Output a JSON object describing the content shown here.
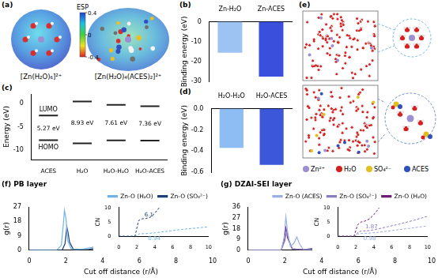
{
  "figure": {
    "a": {
      "panel": "(a)",
      "labels": [
        "[Zn(H₂O)₆]²⁺",
        "[Zn(H₂O)₄(ACES)₂]²⁺"
      ],
      "colorbar": {
        "title": "ESP",
        "range": [
          -0.4,
          0.4
        ],
        "ticks": [
          0.4,
          0,
          -0.4
        ]
      }
    },
    "e": {
      "panel": "(e)",
      "species": [
        "Zn²⁺",
        "H₂O",
        "SO₄²⁻",
        "ACES"
      ]
    }
  },
  "chart_data": [
    {
      "panel": "(b)",
      "type": "bar",
      "categories": [
        "Zn-H₂O",
        "Zn-ACES"
      ],
      "values": [
        -15.5,
        -27.5
      ],
      "colors": [
        "#9cc3f2",
        "#3a4fdc"
      ],
      "y_label": "Binding energy (eV)",
      "ylim": [
        -30,
        0
      ],
      "yticks": [
        -30,
        -20,
        -10,
        0
      ],
      "grid": false
    },
    {
      "panel": "(c)",
      "type": "energy_levels",
      "categories": [
        "ACES",
        "H₂O",
        "H₂O-H₂O",
        "H₂O-ACES"
      ],
      "series": [
        {
          "name": "LUMO",
          "values": [
            -2.6,
            0.4,
            -0.3,
            -0.6
          ]
        },
        {
          "name": "HOMO",
          "values": [
            -7.87,
            -8.53,
            -7.91,
            -7.96
          ]
        }
      ],
      "gap_labels": [
        "5.27 eV",
        "8.93 eV",
        "7.61 eV",
        "7.36 eV"
      ],
      "color": "#222222",
      "y_label": "Energy (eV)",
      "ylim": [
        -12,
        2
      ],
      "yticks": [
        -10,
        -5,
        0
      ],
      "grid": false
    },
    {
      "panel": "(d)",
      "type": "bar",
      "categories": [
        "H₂O-H₂O",
        "H₂O-ACES"
      ],
      "values": [
        -0.37,
        -0.53
      ],
      "colors": [
        "#8dbdf2",
        "#3d57da"
      ],
      "y_label": "Binding energy (eV)",
      "ylim": [
        -0.6,
        0
      ],
      "yticks": [
        -0.6,
        -0.4,
        -0.2,
        {
          "value": 0,
          "label": "0.0"
        }
      ],
      "grid": false
    },
    {
      "panel": "(f)",
      "type": "line",
      "title": "PB layer",
      "x_label": "Cut off distance (r/Å)",
      "y_label": "g(r)",
      "xlim": [
        0,
        10
      ],
      "xticks": [
        0,
        2,
        4,
        6,
        8,
        10
      ],
      "ylim": [
        0,
        27
      ],
      "yticks": [
        0,
        9,
        18,
        27
      ],
      "grid": false,
      "legend": "upper right",
      "series": [
        {
          "name": "Zn-O (H₂O)",
          "color": "#6fb3e8",
          "x": [
            0,
            1.5,
            1.75,
            1.85,
            1.92,
            2.0,
            2.1,
            2.3,
            2.6,
            3.0,
            3.4,
            3.7,
            4.0,
            4.3,
            4.6,
            5,
            6,
            7,
            8,
            9,
            10
          ],
          "values": [
            0,
            0,
            3,
            15,
            25,
            20,
            6,
            0.5,
            0.3,
            0.8,
            1.6,
            2.6,
            3.4,
            2.2,
            1.4,
            1.1,
            1,
            1,
            1,
            1,
            1
          ]
        },
        {
          "name": "Zn-O (SO₄²⁻)",
          "color": "#1d3f7a",
          "x": [
            0,
            1.8,
            1.95,
            2.05,
            2.1,
            2.2,
            2.4,
            2.8,
            3.2,
            3.5,
            3.8,
            4.1,
            4.5,
            5,
            6,
            7,
            8,
            9,
            10
          ],
          "values": [
            0,
            0,
            4,
            14.5,
            12,
            5,
            0.5,
            0.2,
            0.3,
            1.0,
            2.5,
            3.6,
            1.3,
            0.8,
            0.6,
            0.7,
            0.8,
            0.8,
            0.8
          ]
        }
      ],
      "inset": {
        "type": "line",
        "y_label": "CN",
        "xlim": [
          0,
          10
        ],
        "xticks": [
          0,
          2,
          4,
          6,
          8,
          10
        ],
        "ylim": [
          0,
          10
        ],
        "yticks": [
          0,
          5,
          10
        ],
        "grid": false,
        "line_style": "dashed",
        "series": [
          {
            "color": "#1d3f7a",
            "x": [
              0,
              1.8,
              2.2,
              2.6,
              3,
              3.5,
              4,
              4.5,
              5,
              5.5
            ],
            "values": [
              0,
              0,
              5.5,
              6.1,
              6.2,
              6.6,
              8,
              10,
              12.5,
              15
            ]
          },
          {
            "color": "#6fb3e8",
            "x": [
              0,
              1.9,
              2.3,
              3,
              4,
              5,
              6,
              7,
              8,
              9,
              10
            ],
            "values": [
              0,
              0,
              0.9,
              0.94,
              1.2,
              1.6,
              2.0,
              2.4,
              2.7,
              3.0,
              3.3
            ]
          }
        ],
        "annotations": [
          {
            "text": "6.1",
            "x": 2.6,
            "y": 6.1,
            "color": "#1d3f7a"
          },
          {
            "text": "0.94",
            "x": 3,
            "y": 0.94,
            "color": "#6fb3e8"
          }
        ]
      }
    },
    {
      "panel": "(g)",
      "type": "line",
      "title": "DZAI-SEI layer",
      "x_label": "Cut off distance (r/Å)",
      "y_label": "g(r)",
      "xlim": [
        0,
        10
      ],
      "xticks": [
        0,
        2,
        4,
        6,
        8,
        10
      ],
      "ylim": [
        0,
        36
      ],
      "yticks": [
        0,
        9,
        18,
        27,
        36
      ],
      "grid": false,
      "legend": "upper right",
      "series": [
        {
          "name": "Zn-O (ACES)",
          "color": "#9aaee8",
          "x": [
            0,
            1.8,
            1.95,
            2.05,
            2.15,
            2.3,
            2.5,
            2.65,
            2.8,
            3.0,
            3.4,
            4,
            4.5,
            5,
            6,
            7,
            8,
            9,
            10
          ],
          "values": [
            0,
            0,
            10,
            28,
            15,
            3,
            6,
            11,
            5,
            0.5,
            0.3,
            1.5,
            2.5,
            1.4,
            0.9,
            1,
            1,
            1,
            1
          ]
        },
        {
          "name": "Zn-O (SO₄²⁻)",
          "color": "#8a7cc0",
          "x": [
            0,
            1.8,
            2.0,
            2.1,
            2.2,
            2.4,
            2.8,
            3.5,
            4.2,
            4.6,
            5,
            6,
            7,
            8,
            9,
            10
          ],
          "values": [
            0,
            0,
            8,
            16,
            9,
            1,
            0.3,
            0.8,
            2.5,
            1.5,
            1,
            0.8,
            0.9,
            0.9,
            0.9,
            0.9
          ]
        },
        {
          "name": "Zn-O (H₂O)",
          "color": "#6b1f72",
          "x": [
            0,
            1.8,
            1.95,
            2.05,
            2.15,
            2.4,
            3.0,
            3.6,
            4.0,
            4.4,
            5,
            6,
            7,
            8,
            9,
            10
          ],
          "values": [
            0,
            0,
            8,
            18.5,
            10,
            1,
            0.3,
            1.5,
            2.5,
            2.0,
            1.2,
            1,
            1,
            1,
            1,
            1
          ]
        }
      ],
      "inset": {
        "type": "line",
        "y_label": "CN",
        "xlim": [
          0,
          10
        ],
        "xticks": [
          0,
          2,
          4,
          6,
          8,
          10
        ],
        "ylim": [
          0,
          10
        ],
        "yticks": [
          0,
          5,
          10
        ],
        "grid": false,
        "line_style": "dashed",
        "series": [
          {
            "color": "#6b1f72",
            "x": [
              0,
              1.8,
              2.2,
              2.6,
              3,
              3.5,
              4,
              4.5,
              5
            ],
            "values": [
              0,
              0,
              4,
              5,
              5.3,
              6,
              7.5,
              9.5,
              12
            ]
          },
          {
            "color": "#8a7cc0",
            "x": [
              0,
              1.9,
              2.3,
              2.8,
              3.5,
              4.5,
              5.5,
              6.5,
              7.5,
              8.5,
              10
            ],
            "values": [
              0,
              0,
              1.6,
              1.87,
              2.0,
              2.6,
              3.3,
              4.0,
              4.8,
              5.6,
              7
            ]
          },
          {
            "color": "#9aaee8",
            "x": [
              0,
              1.9,
              2.2,
              2.6,
              3.5,
              4.5,
              5.5,
              6.5,
              7.5,
              8.5,
              10
            ],
            "values": [
              0,
              0,
              0.8,
              0.98,
              1.1,
              1.4,
              1.8,
              2.2,
              2.6,
              3.0,
              3.6
            ]
          }
        ],
        "annotations": [
          {
            "text": "1.87",
            "x": 2.8,
            "y": 1.87,
            "color": "#8a7cc0"
          },
          {
            "text": "0.98",
            "x": 2.6,
            "y": 0.98,
            "color": "#9aaee8"
          }
        ]
      }
    }
  ]
}
